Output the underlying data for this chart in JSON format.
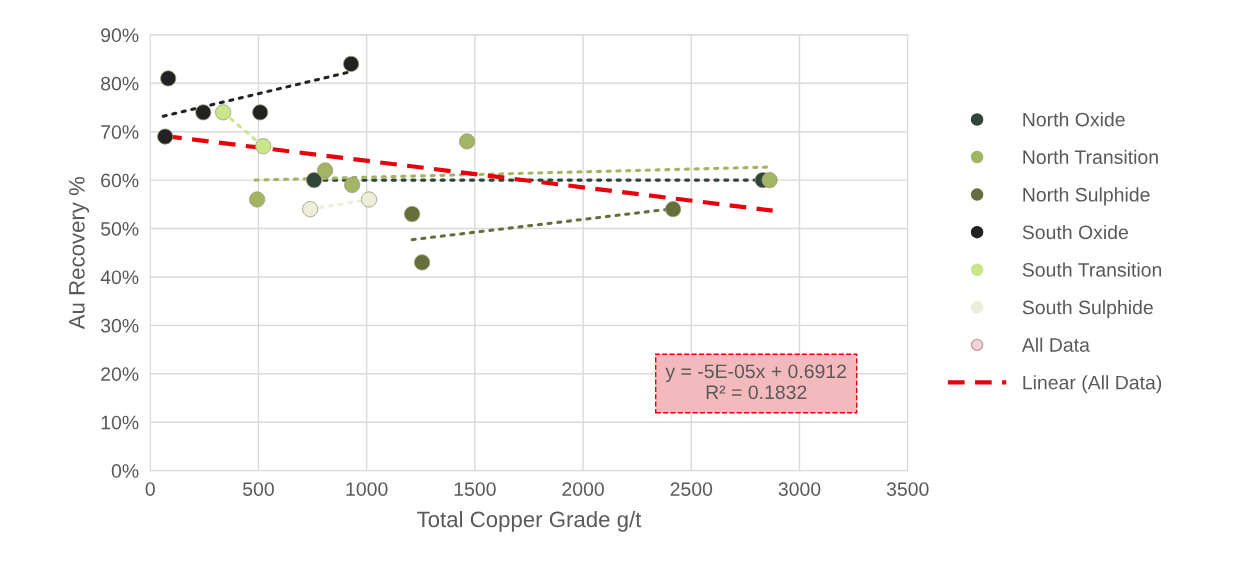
{
  "chart_data": {
    "type": "scatter",
    "xlabel": "Total Copper Grade g/t",
    "ylabel": "Au Recovery %",
    "xlim": [
      0,
      3500
    ],
    "xticks": [
      0,
      500,
      1000,
      1500,
      2000,
      2500,
      3000,
      3500
    ],
    "ylim": [
      0,
      90
    ],
    "yticks": [
      {
        "value": 0,
        "label": "0%"
      },
      {
        "value": 10,
        "label": "10%"
      },
      {
        "value": 20,
        "label": "20%"
      },
      {
        "value": 30,
        "label": "30%"
      },
      {
        "value": 40,
        "label": "40%"
      },
      {
        "value": 50,
        "label": "50%"
      },
      {
        "value": 60,
        "label": "60%"
      },
      {
        "value": 70,
        "label": "70%"
      },
      {
        "value": 80,
        "label": "80%"
      },
      {
        "value": 90,
        "label": "90%"
      }
    ],
    "grid": true,
    "legend": "right",
    "marker": "circle",
    "annotations": [
      "y = -5E-05x + 0.6912\nR² = 0.1832"
    ],
    "series": [
      {
        "name": "North Oxide",
        "color": "#2f4538",
        "x": [
          757,
          2830
        ],
        "values": [
          60,
          60
        ]
      },
      {
        "name": "North Transition",
        "color": "#a3b562",
        "x": [
          494,
          808,
          933,
          1464,
          2862
        ],
        "values": [
          56,
          62,
          59,
          68,
          60
        ]
      },
      {
        "name": "North Sulphide",
        "color": "#666e3c",
        "x": [
          1210,
          1256,
          2416
        ],
        "values": [
          53,
          43,
          54
        ]
      },
      {
        "name": "South Oxide",
        "color": "#222222",
        "x": [
          69,
          83,
          245,
          508,
          928
        ],
        "values": [
          69,
          81,
          74,
          74,
          84
        ]
      },
      {
        "name": "South Transition",
        "color": "#c8e68a",
        "x": [
          337,
          522
        ],
        "values": [
          74,
          67
        ]
      },
      {
        "name": "South Sulphide",
        "color": "#eceed8",
        "x": [
          739,
          1011
        ],
        "values": [
          54,
          56
        ]
      },
      {
        "name": "All Data",
        "color": "#f4d4d8"
      },
      {
        "type": "line",
        "color": "#222222",
        "marker": "none",
        "line_style": "dotted",
        "x": [
          60,
          928
        ],
        "values": [
          73.2,
          82.4
        ]
      },
      {
        "type": "line",
        "color": "#2f4538",
        "marker": "none",
        "line_style": "dotted",
        "x": [
          757,
          2845
        ],
        "values": [
          60,
          60
        ]
      },
      {
        "type": "line",
        "color": "#a3b562",
        "marker": "none",
        "line_style": "dotted",
        "x": [
          485,
          2867
        ],
        "values": [
          60,
          62.7
        ]
      },
      {
        "type": "line",
        "color": "#666e3c",
        "marker": "none",
        "line_style": "dotted",
        "x": [
          1210,
          2416
        ],
        "values": [
          47.7,
          54.1
        ]
      },
      {
        "type": "line",
        "color": "#c8e68a",
        "marker": "none",
        "line_style": "dotted",
        "x": [
          337,
          522
        ],
        "values": [
          74,
          67
        ]
      },
      {
        "type": "line",
        "color": "#eceed8",
        "marker": "none",
        "line_style": "dotted",
        "x": [
          739,
          1011
        ],
        "values": [
          54,
          56
        ]
      },
      {
        "name": "Linear (All Data)",
        "type": "line",
        "color": "#e8000b",
        "marker": "none",
        "line_style": "dashed",
        "x": [
          69,
          2876
        ],
        "values": [
          69.1,
          53.7
        ]
      }
    ]
  }
}
